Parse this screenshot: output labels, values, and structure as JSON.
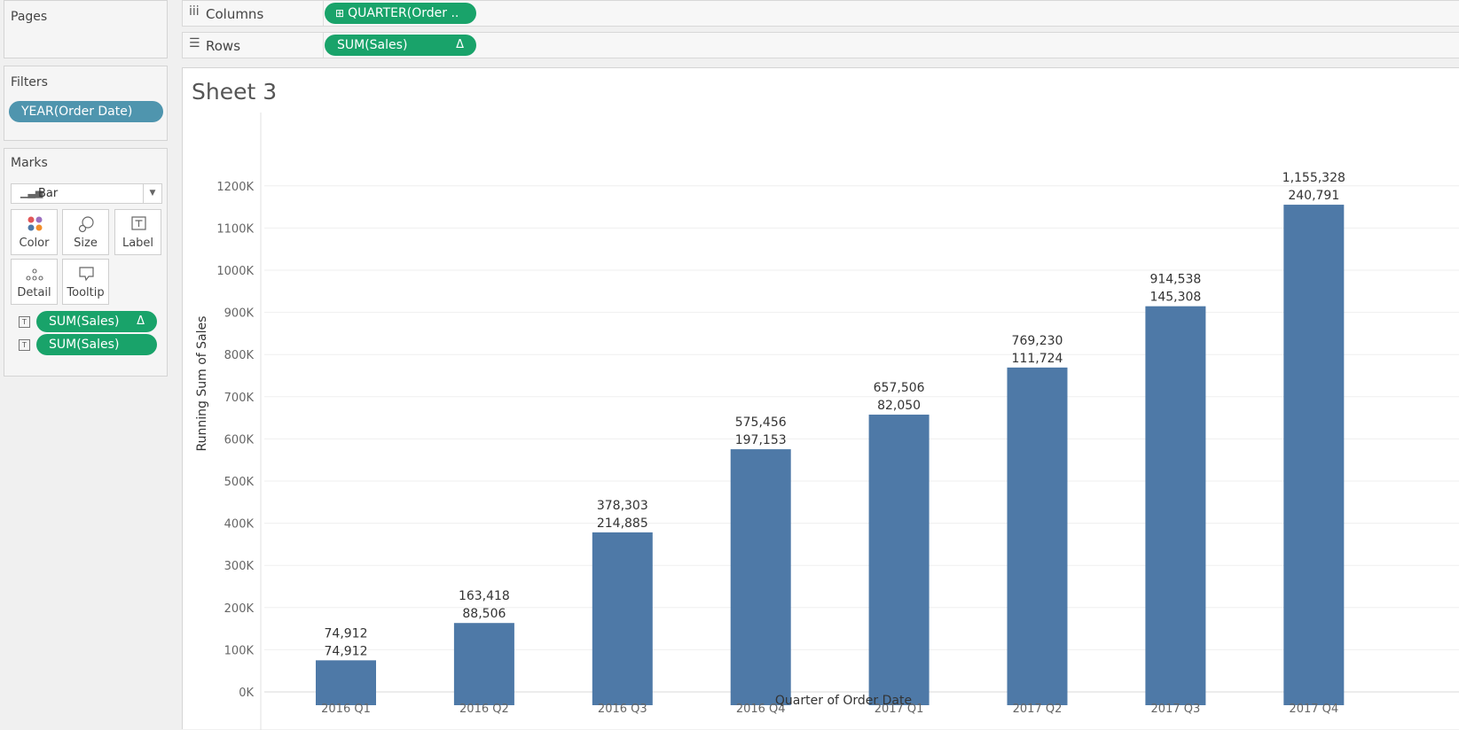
{
  "pages": {
    "title": "Pages"
  },
  "shelves": {
    "columns": {
      "label": "Columns",
      "pill": "QUARTER(Order ..",
      "pill_icon": "⊞"
    },
    "rows": {
      "label": "Rows",
      "pill": "SUM(Sales)",
      "pill_delta": "Δ"
    }
  },
  "filters": {
    "title": "Filters",
    "pill": "YEAR(Order Date)"
  },
  "marks": {
    "title": "Marks",
    "type": "Bar",
    "buttons": {
      "color": "Color",
      "size": "Size",
      "label": "Label",
      "detail": "Detail",
      "tooltip": "Tooltip"
    },
    "fields": [
      {
        "label": "SUM(Sales)",
        "delta": "Δ"
      },
      {
        "label": "SUM(Sales)"
      }
    ]
  },
  "sheet": {
    "title": "Sheet 3"
  },
  "colors": {
    "bar": "#4e79a7",
    "pill_green": "#19a36a",
    "pill_blue": "#4f95ae"
  },
  "chart_data": {
    "type": "bar",
    "categories": [
      "2016 Q1",
      "2016 Q2",
      "2016 Q3",
      "2016 Q4",
      "2017 Q1",
      "2017 Q2",
      "2017 Q3",
      "2017 Q4"
    ],
    "series": [
      {
        "values": [
          74912,
          163418,
          378303,
          575456,
          657506,
          769230,
          914538,
          1155328
        ]
      }
    ],
    "label_lines": {
      "running_sum": [
        "74,912",
        "163,418",
        "378,303",
        "575,456",
        "657,506",
        "769,230",
        "914,538",
        "1,155,328"
      ],
      "sum_sales": [
        "74,912",
        "88,506",
        "214,885",
        "197,153",
        "82,050",
        "111,724",
        "145,308",
        "240,791"
      ]
    },
    "ylabel": "Running Sum of Sales",
    "xlabel": "Quarter of Order Date",
    "yticks": [
      "0K",
      "100K",
      "200K",
      "300K",
      "400K",
      "500K",
      "600K",
      "700K",
      "800K",
      "900K",
      "1000K",
      "1100K",
      "1200K"
    ],
    "ylim": [
      0,
      1230000
    ],
    "grid": true
  }
}
